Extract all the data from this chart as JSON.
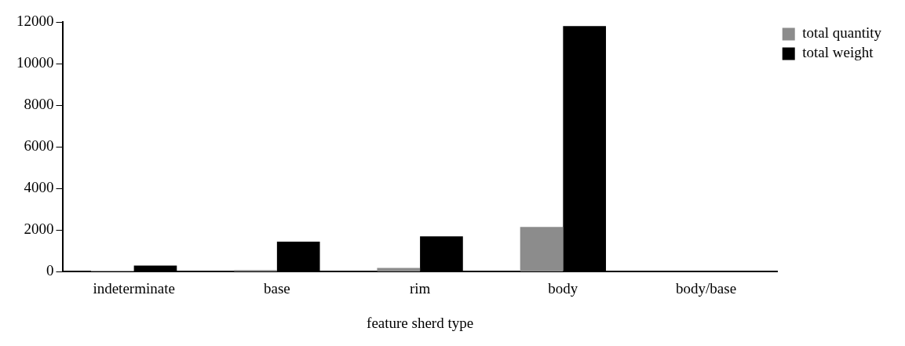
{
  "chart_data": {
    "type": "bar",
    "xlabel": "feature sherd type",
    "categories": [
      "indeterminate",
      "base",
      "rim",
      "body",
      "body/base"
    ],
    "series": [
      {
        "name": "total quantity",
        "color": "#8c8c8c",
        "values": [
          50,
          80,
          180,
          2150,
          null
        ]
      },
      {
        "name": "total weight",
        "color": "#000000",
        "values": [
          300,
          1450,
          1700,
          11800,
          null
        ]
      }
    ],
    "ylim": [
      0,
      12000
    ],
    "yticks": [
      0,
      2000,
      4000,
      6000,
      8000,
      10000,
      12000
    ],
    "grid": false,
    "legend": "top right"
  }
}
